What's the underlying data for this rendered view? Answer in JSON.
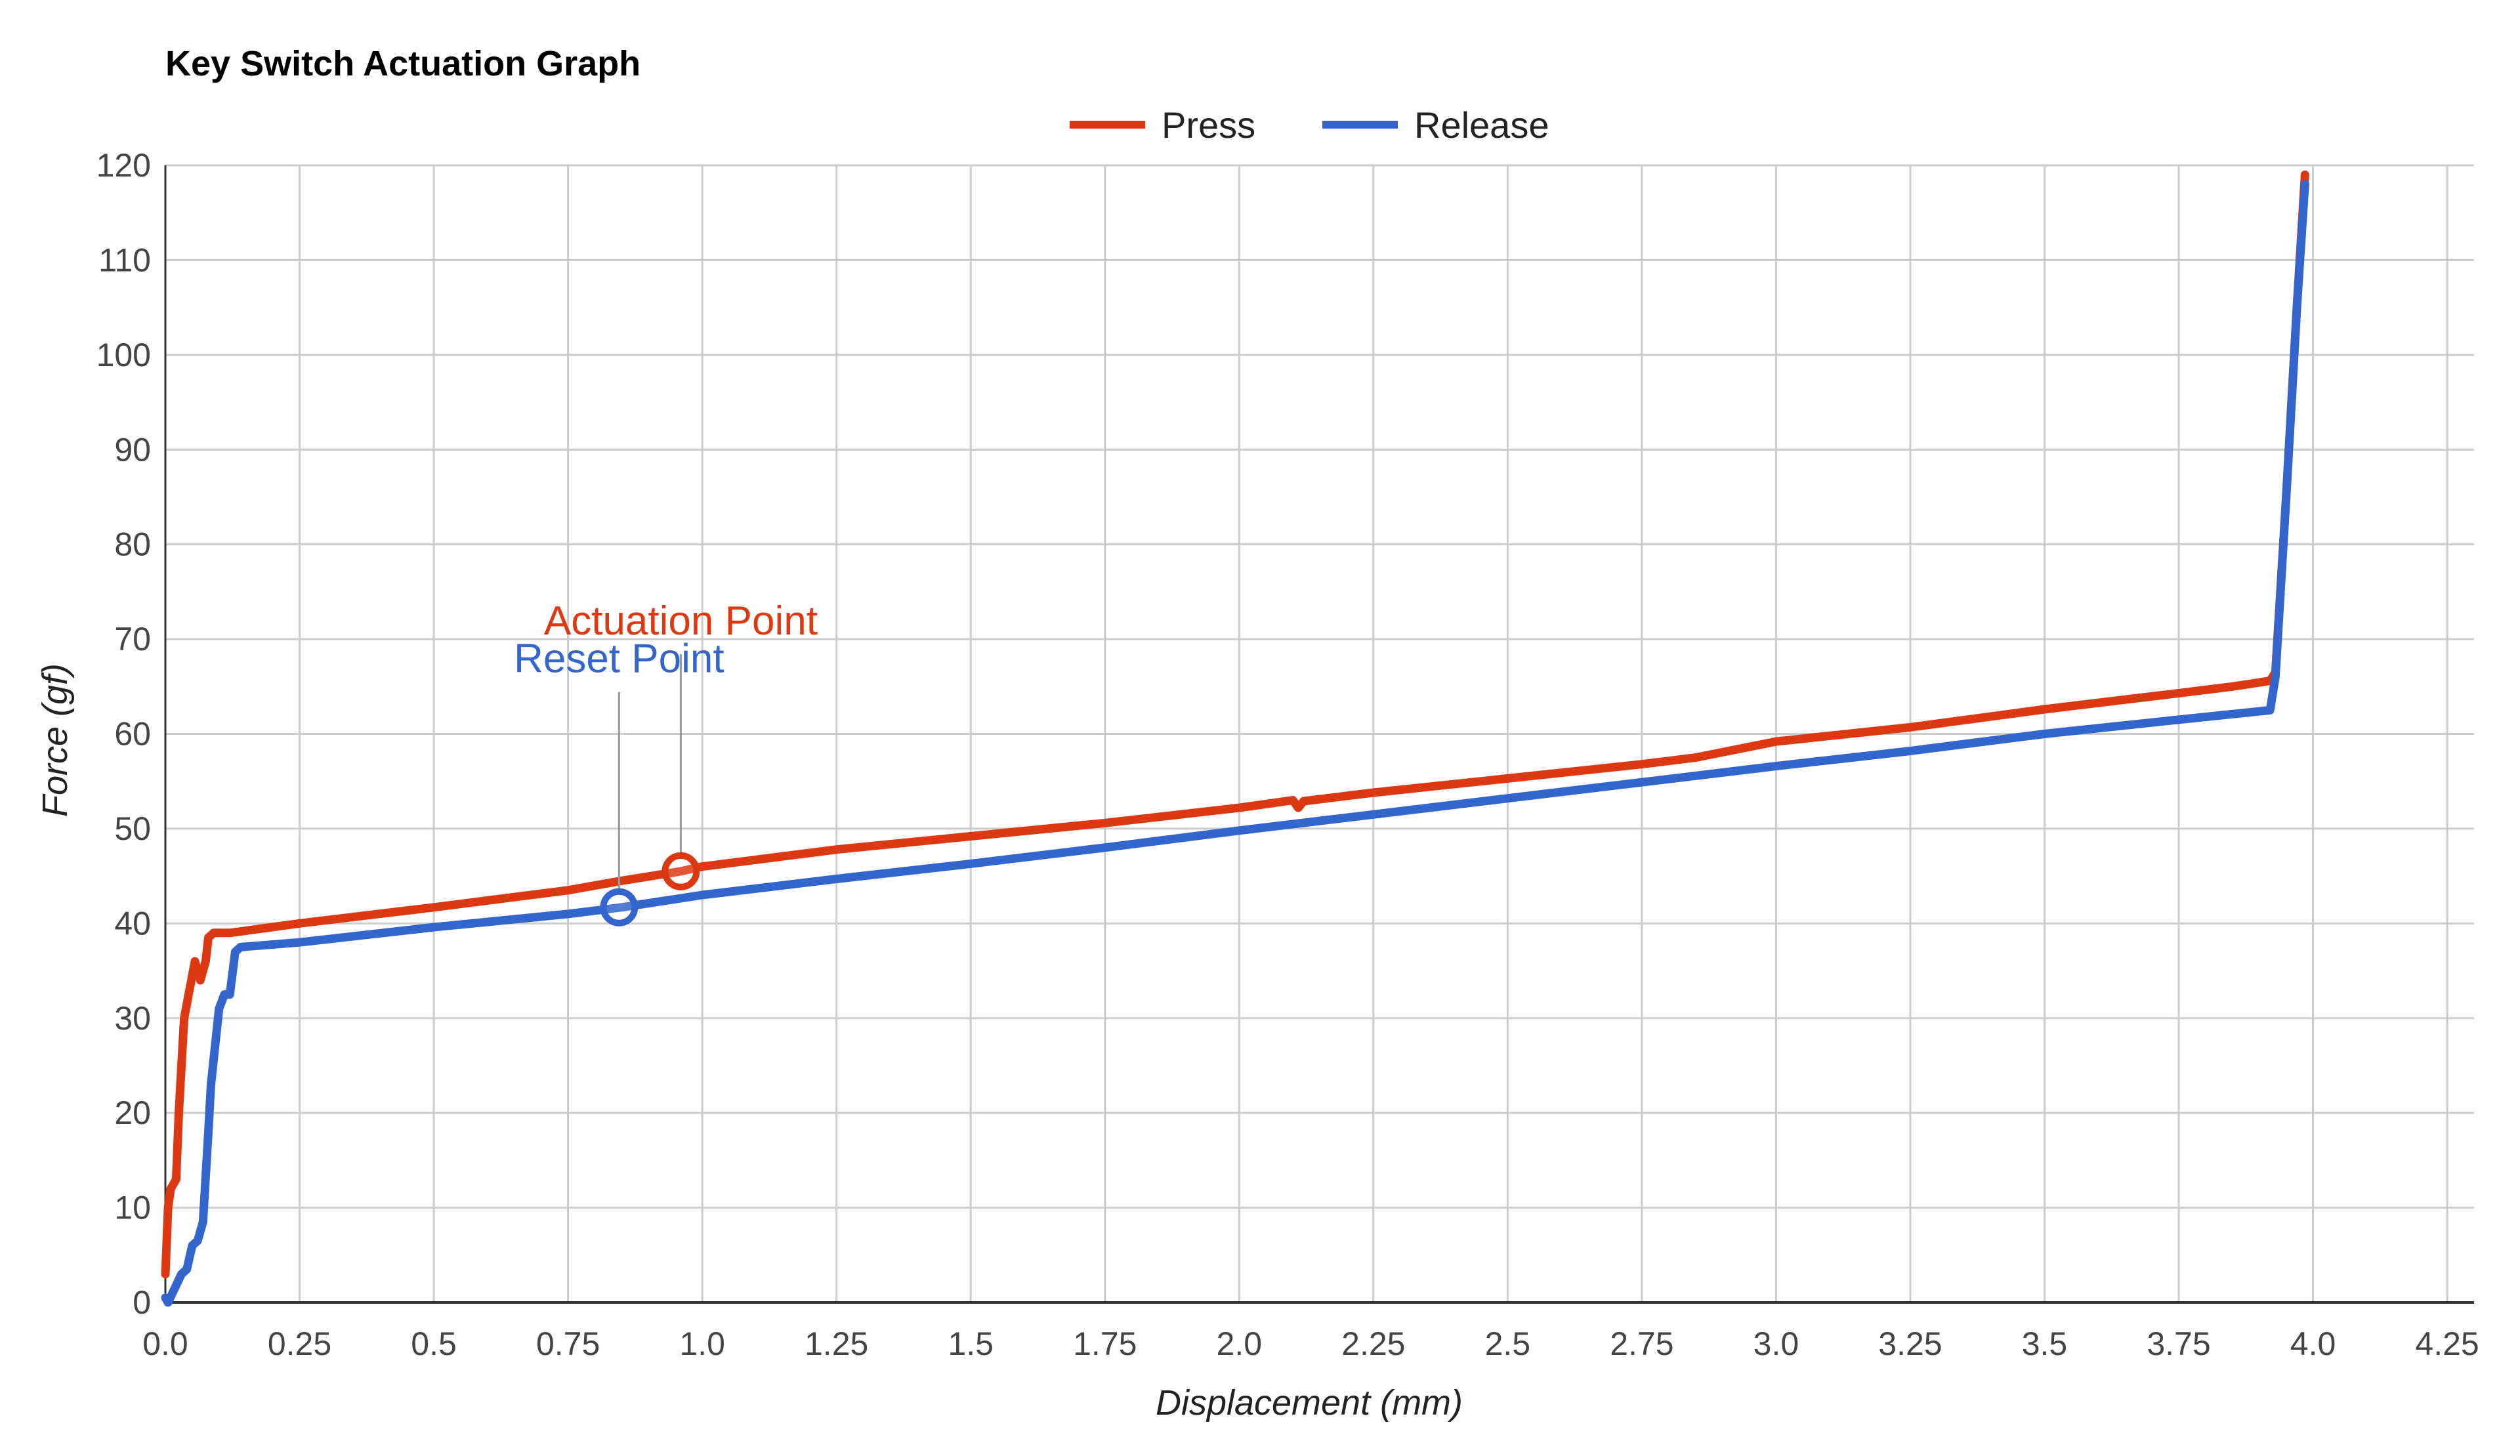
{
  "chart_data": {
    "type": "line",
    "title": "Key Switch Actuation Graph",
    "xlabel": "Displacement (mm)",
    "ylabel": "Force (gf)",
    "xlim": [
      0,
      4.3
    ],
    "ylim": [
      0,
      120
    ],
    "x_ticks": [
      "0.0",
      "0.25",
      "0.5",
      "0.75",
      "1.0",
      "1.25",
      "1.5",
      "1.75",
      "2.0",
      "2.25",
      "2.5",
      "2.75",
      "3.0",
      "3.25",
      "3.5",
      "3.75",
      "4.0",
      "4.25"
    ],
    "x_tick_values": [
      0,
      0.25,
      0.5,
      0.75,
      1.0,
      1.25,
      1.5,
      1.75,
      2.0,
      2.25,
      2.5,
      2.75,
      3.0,
      3.25,
      3.5,
      3.75,
      4.0,
      4.25
    ],
    "y_ticks": [
      0,
      10,
      20,
      30,
      40,
      50,
      60,
      70,
      80,
      90,
      100,
      110,
      120
    ],
    "grid": true,
    "legend_position": "top-center",
    "series": [
      {
        "name": "Press",
        "color": "#dc3912",
        "points": [
          [
            0.0,
            3
          ],
          [
            0.005,
            10
          ],
          [
            0.01,
            12
          ],
          [
            0.02,
            13
          ],
          [
            0.025,
            20
          ],
          [
            0.03,
            25
          ],
          [
            0.035,
            30
          ],
          [
            0.045,
            33
          ],
          [
            0.055,
            36
          ],
          [
            0.065,
            34
          ],
          [
            0.07,
            35
          ],
          [
            0.075,
            36
          ],
          [
            0.08,
            38.5
          ],
          [
            0.09,
            39
          ],
          [
            0.12,
            39
          ],
          [
            0.25,
            40
          ],
          [
            0.5,
            41.7
          ],
          [
            0.75,
            43.5
          ],
          [
            0.85,
            44.5
          ],
          [
            0.96,
            45.5
          ],
          [
            1.0,
            46
          ],
          [
            1.25,
            47.8
          ],
          [
            1.5,
            49.2
          ],
          [
            1.75,
            50.6
          ],
          [
            2.0,
            52.2
          ],
          [
            2.1,
            53
          ],
          [
            2.11,
            52.2
          ],
          [
            2.12,
            52.9
          ],
          [
            2.25,
            53.8
          ],
          [
            2.5,
            55.3
          ],
          [
            2.75,
            56.8
          ],
          [
            2.85,
            57.5
          ],
          [
            3.0,
            59.2
          ],
          [
            3.25,
            60.7
          ],
          [
            3.5,
            62.6
          ],
          [
            3.75,
            64.3
          ],
          [
            3.85,
            65.0
          ],
          [
            3.92,
            65.6
          ],
          [
            3.93,
            66.5
          ],
          [
            3.95,
            85
          ],
          [
            3.97,
            105
          ],
          [
            3.985,
            119
          ]
        ]
      },
      {
        "name": "Release",
        "color": "#3366cc",
        "points": [
          [
            0.0,
            0.5
          ],
          [
            0.005,
            0
          ],
          [
            0.03,
            3
          ],
          [
            0.04,
            3.5
          ],
          [
            0.05,
            6
          ],
          [
            0.06,
            6.5
          ],
          [
            0.07,
            8.5
          ],
          [
            0.08,
            18
          ],
          [
            0.085,
            23
          ],
          [
            0.1,
            31
          ],
          [
            0.11,
            32.5
          ],
          [
            0.12,
            32.5
          ],
          [
            0.13,
            37
          ],
          [
            0.14,
            37.5
          ],
          [
            0.25,
            38
          ],
          [
            0.5,
            39.6
          ],
          [
            0.75,
            41
          ],
          [
            0.85,
            41.7
          ],
          [
            1.0,
            43
          ],
          [
            1.25,
            44.7
          ],
          [
            1.5,
            46.3
          ],
          [
            1.75,
            48
          ],
          [
            2.0,
            49.8
          ],
          [
            2.25,
            51.5
          ],
          [
            2.5,
            53.2
          ],
          [
            2.75,
            54.9
          ],
          [
            3.0,
            56.6
          ],
          [
            3.25,
            58.2
          ],
          [
            3.5,
            60
          ],
          [
            3.75,
            61.5
          ],
          [
            3.92,
            62.5
          ],
          [
            3.93,
            66
          ],
          [
            3.95,
            85
          ],
          [
            3.97,
            105
          ],
          [
            3.985,
            118
          ]
        ]
      }
    ],
    "annotations": [
      {
        "text": "Actuation Point",
        "series": "Press",
        "x": 0.96,
        "y": 45.5,
        "color": "#dc3912",
        "label_x": 0.96,
        "label_y": 70.5
      },
      {
        "text": "Reset Point",
        "series": "Release",
        "x": 0.845,
        "y": 41.7,
        "color": "#3366cc",
        "label_x": 0.845,
        "label_y": 66.5
      }
    ]
  }
}
